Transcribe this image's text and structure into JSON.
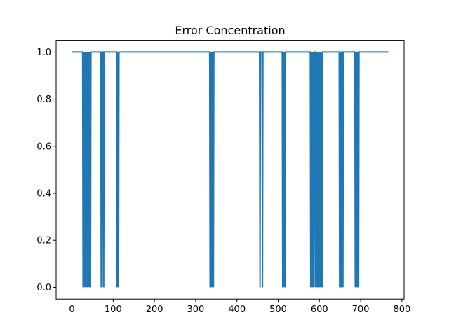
{
  "chart_data": {
    "type": "line",
    "title": "Error Concentration",
    "xlabel": "",
    "ylabel": "",
    "xlim": [
      -38.35,
      805.35
    ],
    "ylim": [
      -0.05,
      1.05
    ],
    "grid": false,
    "x_ticks": [
      0,
      100,
      200,
      300,
      400,
      500,
      600,
      700,
      800
    ],
    "y_ticks": [
      0.0,
      0.2,
      0.4,
      0.6,
      0.8,
      1.0
    ],
    "x_tick_labels": [
      "0",
      "100",
      "200",
      "300",
      "400",
      "500",
      "600",
      "700",
      "800"
    ],
    "y_tick_labels": [
      "0.0",
      "0.2",
      "0.4",
      "0.6",
      "0.8",
      "1.0"
    ],
    "series": [
      {
        "color": "#1f77b4",
        "x": [
          0,
          26,
          27,
          28,
          29,
          30,
          31,
          32,
          33,
          34,
          35,
          36,
          37,
          38,
          39,
          40,
          41,
          42,
          43,
          44,
          45,
          46,
          47,
          70,
          71,
          72,
          73,
          74,
          75,
          76,
          77,
          78,
          108,
          109,
          110,
          111,
          112,
          113,
          114,
          334,
          335,
          336,
          337,
          338,
          339,
          340,
          341,
          342,
          343,
          344,
          345,
          455,
          456,
          457,
          458,
          459,
          460,
          461,
          462,
          463,
          464,
          510,
          511,
          512,
          513,
          514,
          515,
          516,
          517,
          518,
          578,
          579,
          580,
          581,
          582,
          583,
          584,
          585,
          586,
          587,
          588,
          589,
          590,
          591,
          592,
          593,
          594,
          595,
          596,
          597,
          598,
          599,
          600,
          601,
          602,
          603,
          604,
          605,
          606,
          607,
          608,
          648,
          649,
          650,
          651,
          652,
          653,
          654,
          655,
          656,
          657,
          658,
          686,
          687,
          688,
          689,
          690,
          691,
          692,
          693,
          694,
          695,
          696,
          767
        ],
        "y": [
          1,
          1,
          0,
          1,
          0,
          1,
          0,
          1,
          0,
          1,
          0,
          1,
          0,
          1,
          0,
          1,
          0,
          1,
          0,
          1,
          0,
          1,
          1,
          1,
          0,
          1,
          0,
          1,
          1,
          1,
          0,
          1,
          1,
          0,
          1,
          0,
          1,
          0,
          1,
          1,
          0,
          1,
          0,
          1,
          0,
          1,
          0,
          1,
          0,
          1,
          1,
          1,
          0,
          1,
          1,
          1,
          1,
          1,
          0,
          1,
          1,
          1,
          0,
          1,
          0,
          1,
          0,
          1,
          0,
          1,
          1,
          0,
          1,
          0,
          1,
          0,
          1,
          0,
          1,
          0,
          1,
          1,
          1,
          0,
          1,
          0,
          1,
          0,
          1,
          0,
          1,
          0,
          1,
          0,
          1,
          0,
          1,
          0,
          1,
          0,
          1,
          1,
          0,
          1,
          0,
          1,
          0,
          1,
          1,
          1,
          0,
          1,
          1,
          0,
          1,
          0,
          1,
          0,
          1,
          0,
          1,
          0,
          1,
          1
        ]
      }
    ]
  }
}
